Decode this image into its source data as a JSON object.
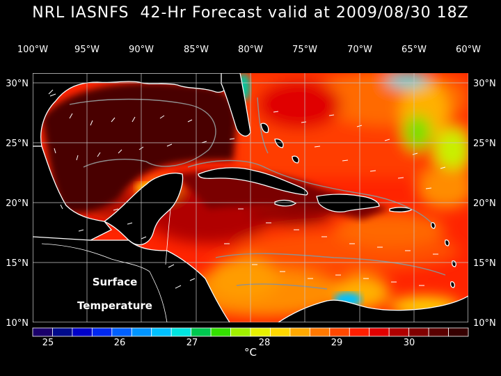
{
  "title": "NRL IASNFS  42-Hr Forecast valid at 2009/08/30 18Z",
  "lon_labels": [
    "100°W",
    "95°W",
    "90°W",
    "85°W",
    "80°W",
    "75°W",
    "70°W",
    "65°W",
    "60°W"
  ],
  "lat_labels": [
    "30°N",
    "25°N",
    "20°N",
    "15°N",
    "10°N"
  ],
  "map_label": {
    "line1": "Surface",
    "line2": "Temperature"
  },
  "colorbar": {
    "tick_labels": [
      "25",
      "26",
      "27",
      "28",
      "29",
      "30"
    ],
    "unit": "°C",
    "colors": [
      "#1a006a",
      "#000a8a",
      "#0000c8",
      "#0028f0",
      "#0060ff",
      "#0094ff",
      "#00c0ff",
      "#00e4e0",
      "#00c850",
      "#34e000",
      "#a0f000",
      "#e6f000",
      "#ffd800",
      "#ffa800",
      "#ff7800",
      "#ff4800",
      "#ff1e00",
      "#e00000",
      "#b00000",
      "#800000",
      "#5a0000",
      "#360000"
    ]
  },
  "colors": {
    "deep_gulf": "#4a0000",
    "caribbean": "#ff2a00",
    "atlantic": "#ff3a00",
    "grid": "#c8c8c8",
    "coast": "#ffffff",
    "contour": "#909090"
  }
}
